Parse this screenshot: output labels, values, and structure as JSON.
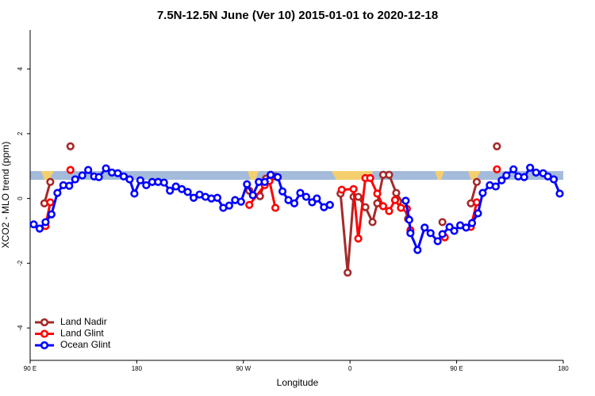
{
  "chart_data": {
    "type": "line",
    "title": "7.5N-12.5N June (Ver 10)   2015-01-01 to 2020-12-18",
    "x_label": "Longitude",
    "y_label": "XCO2 - MLO trend (ppm)",
    "xlim": [
      90,
      540
    ],
    "xticks": [
      {
        "value": 90,
        "label": "90 E"
      },
      180,
      {
        "value": 270,
        "label": "90 W"
      },
      {
        "value": 360,
        "label": "0"
      },
      {
        "value": 450,
        "label": "90 E"
      },
      {
        "value": 540,
        "label": "180"
      }
    ],
    "ylim": [
      -5,
      5.2
    ],
    "yticks": [
      4,
      2,
      0,
      -2,
      -4
    ],
    "legend": "bottom-left",
    "series": [
      {
        "name": "Land Nadir",
        "color": "#a52a2a",
        "x": [
          102,
          107,
          null,
          124,
          null,
          275,
          284,
          289,
          297,
          null,
          352,
          358,
          363,
          367,
          373,
          379,
          383,
          388,
          393,
          399,
          405,
          409,
          null,
          438,
          null,
          462,
          467,
          null,
          484
        ],
        "values": [
          -0.15,
          0.51,
          null,
          1.61,
          null,
          0.24,
          0.07,
          0.61,
          0.68,
          null,
          0.15,
          -2.29,
          0.05,
          0.05,
          -0.27,
          -0.73,
          -0.15,
          0.73,
          0.73,
          0.17,
          -0.17,
          -0.63,
          null,
          -0.73,
          null,
          -0.15,
          0.51,
          null,
          1.61
        ]
      },
      {
        "name": "Land Glint",
        "color": "#ff0000",
        "x": [
          103,
          107,
          null,
          124,
          null,
          275,
          288,
          292,
          297,
          null,
          353,
          363,
          367,
          373,
          377,
          383,
          388,
          393,
          398,
          403,
          408,
          411,
          null,
          440,
          null,
          462,
          467,
          null,
          484
        ],
        "values": [
          -0.85,
          -0.12,
          null,
          0.88,
          null,
          -0.2,
          0.41,
          0.54,
          -0.29,
          null,
          0.27,
          0.29,
          -1.24,
          0.63,
          0.63,
          0.15,
          -0.24,
          -0.39,
          -0.05,
          -0.29,
          -0.32,
          -0.98,
          null,
          -1.2,
          null,
          -0.88,
          -0.12,
          null,
          0.9
        ]
      },
      {
        "name": "Ocean Glint",
        "color": "#0000ff",
        "x": [
          93,
          98,
          103,
          108,
          113,
          118,
          123,
          128,
          134,
          139,
          144,
          148,
          154,
          159,
          164,
          169,
          174,
          178,
          183,
          188,
          193,
          198,
          203,
          208,
          213,
          218,
          223,
          228,
          233,
          238,
          243,
          248,
          253,
          258,
          263,
          268,
          273,
          278,
          283,
          288,
          293,
          299,
          303,
          308,
          313,
          318,
          323,
          328,
          332,
          338,
          343,
          null,
          407,
          410,
          411,
          417,
          423,
          428,
          434,
          438,
          444,
          448,
          453,
          458,
          463,
          468,
          472,
          478,
          483,
          488,
          492,
          498,
          502,
          507,
          512,
          517,
          523,
          527,
          532,
          537
        ],
        "values": [
          -0.8,
          -0.93,
          -0.73,
          -0.49,
          0.17,
          0.41,
          0.39,
          0.59,
          0.71,
          0.88,
          0.68,
          0.66,
          0.93,
          0.8,
          0.78,
          0.68,
          0.59,
          0.15,
          0.56,
          0.41,
          0.51,
          0.51,
          0.49,
          0.24,
          0.37,
          0.29,
          0.2,
          0.02,
          0.12,
          0.05,
          0,
          0.02,
          -0.29,
          -0.22,
          -0.05,
          -0.1,
          0.44,
          0.1,
          0.51,
          0.51,
          0.73,
          0.66,
          0.22,
          -0.05,
          -0.15,
          0.17,
          0.05,
          -0.12,
          0,
          -0.27,
          -0.2,
          null,
          -0.07,
          -0.66,
          -1.07,
          -1.59,
          -0.9,
          -1.07,
          -1.32,
          -1.1,
          -0.88,
          -1.0,
          -0.83,
          -0.9,
          -0.76,
          -0.46,
          0.17,
          0.41,
          0.37,
          0.56,
          0.71,
          0.9,
          0.68,
          0.66,
          0.95,
          0.8,
          0.78,
          0.68,
          0.59,
          0.15
        ]
      }
    ]
  }
}
